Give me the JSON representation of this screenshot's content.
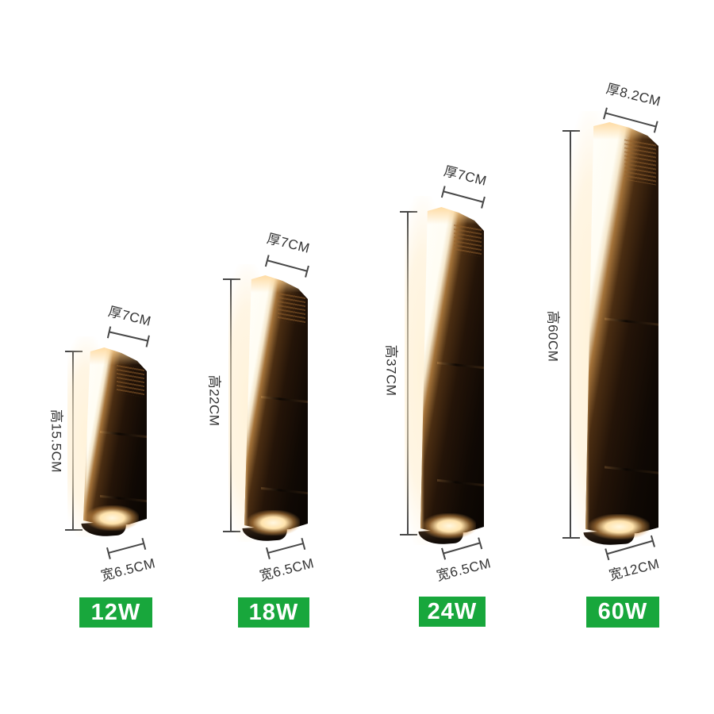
{
  "products": [
    {
      "wattage": "12W",
      "thickness_label": "厚7CM",
      "height_label": "高15.5CM",
      "width_label": "宽6.5CM"
    },
    {
      "wattage": "18W",
      "thickness_label": "厚7CM",
      "height_label": "高22CM",
      "width_label": "宽6.5CM"
    },
    {
      "wattage": "24W",
      "thickness_label": "厚7CM",
      "height_label": "高37CM",
      "width_label": "宽6.5CM"
    },
    {
      "wattage": "60W",
      "thickness_label": "厚8.2CM",
      "height_label": "高60CM",
      "width_label": "宽12CM"
    }
  ],
  "colors": {
    "badge_green": "#18a73c",
    "dimension_line": "#474747",
    "dimension_text": "#333333",
    "background": "#ffffff",
    "lamp_glow_warm": "#ffe3ac"
  }
}
